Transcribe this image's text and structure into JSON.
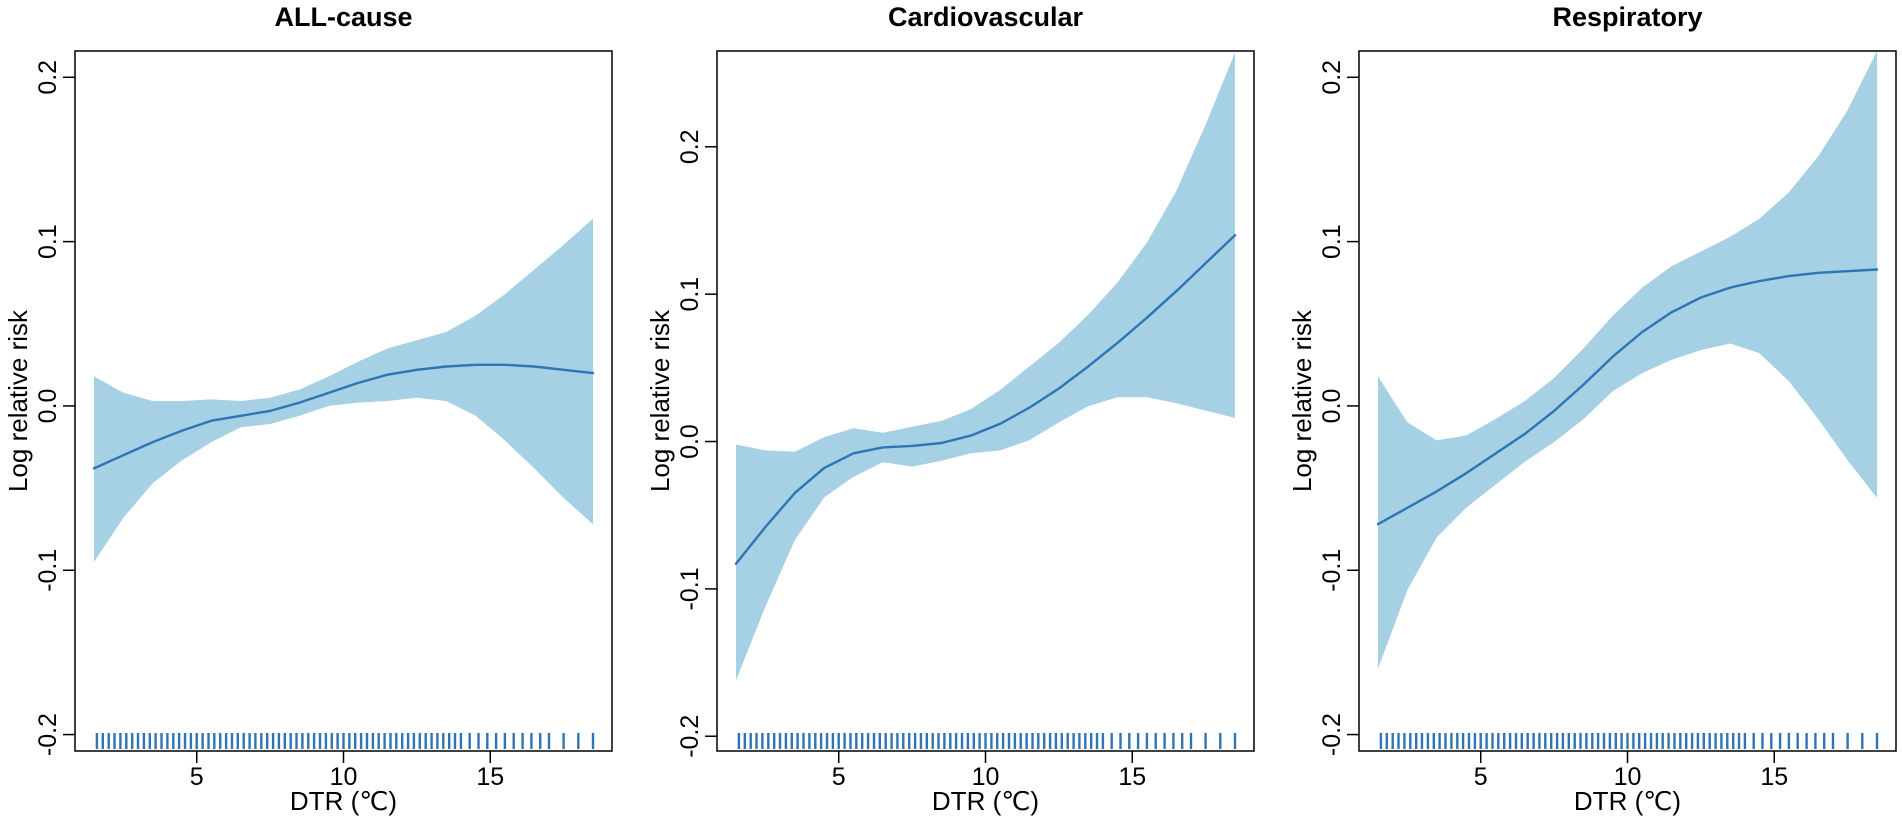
{
  "figure": {
    "background": "#ffffff"
  },
  "style": {
    "band_color": "#a6d0e4",
    "line_color": "#2f74b5",
    "rug_color": "#2f74b5",
    "axis_color": "#000000"
  },
  "chart_data": [
    {
      "type": "line",
      "title": "ALL-cause",
      "xlabel": "DTR (℃)",
      "ylabel": "Log relative risk",
      "xlim": [
        1.5,
        18.5
      ],
      "ylim": [
        -0.21,
        0.216
      ],
      "xticks": [
        5,
        10,
        15
      ],
      "xtick_labels": [
        "5",
        "10",
        "15"
      ],
      "yticks": [
        -0.2,
        -0.1,
        0.0,
        0.1,
        0.2
      ],
      "ytick_labels": [
        "-0.2",
        "-0.1",
        "0.0",
        "0.1",
        "0.2"
      ],
      "x": [
        1.5,
        2.5,
        3.5,
        4.5,
        5.5,
        6.5,
        7.5,
        8.5,
        9.5,
        10.5,
        11.5,
        12.5,
        13.5,
        14.5,
        15.5,
        16.5,
        17.5,
        18.5
      ],
      "series": [
        {
          "name": "Estimate",
          "values": [
            -0.038,
            -0.03,
            -0.022,
            -0.015,
            -0.009,
            -0.006,
            -0.003,
            0.002,
            0.008,
            0.014,
            0.019,
            0.022,
            0.024,
            0.025,
            0.025,
            0.024,
            0.022,
            0.02
          ]
        },
        {
          "name": "Upper 95% CI",
          "values": [
            0.018,
            0.008,
            0.003,
            0.003,
            0.004,
            0.003,
            0.005,
            0.01,
            0.018,
            0.027,
            0.035,
            0.04,
            0.045,
            0.055,
            0.068,
            0.083,
            0.098,
            0.114
          ]
        },
        {
          "name": "Lower 95% CI",
          "values": [
            -0.095,
            -0.068,
            -0.047,
            -0.033,
            -0.022,
            -0.013,
            -0.011,
            -0.006,
            0.0,
            0.002,
            0.003,
            0.005,
            0.003,
            -0.006,
            -0.021,
            -0.038,
            -0.056,
            -0.072
          ]
        }
      ],
      "rug": [
        1.6,
        1.8,
        2.0,
        2.2,
        2.4,
        2.6,
        2.8,
        3.0,
        3.2,
        3.4,
        3.6,
        3.8,
        4.0,
        4.2,
        4.4,
        4.6,
        4.8,
        5.0,
        5.2,
        5.4,
        5.6,
        5.8,
        6.0,
        6.2,
        6.4,
        6.6,
        6.8,
        7.0,
        7.2,
        7.4,
        7.6,
        7.8,
        8.0,
        8.2,
        8.4,
        8.6,
        8.8,
        9.0,
        9.2,
        9.4,
        9.6,
        9.8,
        10.0,
        10.2,
        10.4,
        10.6,
        10.8,
        11.0,
        11.2,
        11.4,
        11.6,
        11.8,
        12.0,
        12.2,
        12.4,
        12.6,
        12.8,
        13.0,
        13.2,
        13.4,
        13.6,
        13.8,
        14.0,
        14.3,
        14.6,
        14.9,
        15.2,
        15.5,
        15.8,
        16.1,
        16.4,
        16.7,
        17.0,
        17.5,
        18.0,
        18.5
      ]
    },
    {
      "type": "line",
      "title": "Cardiovascular",
      "xlabel": "DTR (℃)",
      "ylabel": "Log relative risk",
      "xlim": [
        1.5,
        18.5
      ],
      "ylim": [
        -0.21,
        0.265
      ],
      "xticks": [
        5,
        10,
        15
      ],
      "xtick_labels": [
        "5",
        "10",
        "15"
      ],
      "yticks": [
        -0.2,
        -0.1,
        0.0,
        0.1,
        0.2
      ],
      "ytick_labels": [
        "-0.2",
        "-0.1",
        "0.0",
        "0.1",
        "0.2"
      ],
      "x": [
        1.5,
        2.5,
        3.5,
        4.5,
        5.5,
        6.5,
        7.5,
        8.5,
        9.5,
        10.5,
        11.5,
        12.5,
        13.5,
        14.5,
        15.5,
        16.5,
        17.5,
        18.5
      ],
      "series": [
        {
          "name": "Estimate",
          "values": [
            -0.083,
            -0.058,
            -0.035,
            -0.018,
            -0.008,
            -0.004,
            -0.003,
            -0.001,
            0.004,
            0.012,
            0.023,
            0.036,
            0.051,
            0.067,
            0.084,
            0.102,
            0.121,
            0.14
          ]
        },
        {
          "name": "Upper 95% CI",
          "values": [
            -0.002,
            -0.006,
            -0.007,
            0.003,
            0.009,
            0.006,
            0.01,
            0.014,
            0.022,
            0.035,
            0.051,
            0.067,
            0.086,
            0.108,
            0.135,
            0.17,
            0.215,
            0.264
          ]
        },
        {
          "name": "Lower 95% CI",
          "values": [
            -0.162,
            -0.112,
            -0.067,
            -0.038,
            -0.024,
            -0.014,
            -0.017,
            -0.013,
            -0.008,
            -0.006,
            0.001,
            0.013,
            0.024,
            0.03,
            0.03,
            0.026,
            0.021,
            0.016
          ]
        }
      ],
      "rug": [
        1.6,
        1.8,
        2.0,
        2.2,
        2.4,
        2.6,
        2.8,
        3.0,
        3.2,
        3.4,
        3.6,
        3.8,
        4.0,
        4.2,
        4.4,
        4.6,
        4.8,
        5.0,
        5.2,
        5.4,
        5.6,
        5.8,
        6.0,
        6.2,
        6.4,
        6.6,
        6.8,
        7.0,
        7.2,
        7.4,
        7.6,
        7.8,
        8.0,
        8.2,
        8.4,
        8.6,
        8.8,
        9.0,
        9.2,
        9.4,
        9.6,
        9.8,
        10.0,
        10.2,
        10.4,
        10.6,
        10.8,
        11.0,
        11.2,
        11.4,
        11.6,
        11.8,
        12.0,
        12.2,
        12.4,
        12.6,
        12.8,
        13.0,
        13.2,
        13.4,
        13.6,
        13.8,
        14.0,
        14.3,
        14.6,
        14.9,
        15.2,
        15.5,
        15.8,
        16.1,
        16.4,
        16.7,
        17.0,
        17.5,
        18.0,
        18.5
      ]
    },
    {
      "type": "line",
      "title": "Respiratory",
      "xlabel": "DTR (℃)",
      "ylabel": "Log relative risk",
      "xlim": [
        1.5,
        18.5
      ],
      "ylim": [
        -0.21,
        0.216
      ],
      "xticks": [
        5,
        10,
        15
      ],
      "xtick_labels": [
        "5",
        "10",
        "15"
      ],
      "yticks": [
        -0.2,
        -0.1,
        0.0,
        0.1,
        0.2
      ],
      "ytick_labels": [
        "-0.2",
        "-0.1",
        "0.0",
        "0.1",
        "0.2"
      ],
      "x": [
        1.5,
        2.5,
        3.5,
        4.5,
        5.5,
        6.5,
        7.5,
        8.5,
        9.5,
        10.5,
        11.5,
        12.5,
        13.5,
        14.5,
        15.5,
        16.5,
        17.5,
        18.5
      ],
      "series": [
        {
          "name": "Estimate",
          "values": [
            -0.072,
            -0.062,
            -0.052,
            -0.041,
            -0.029,
            -0.017,
            -0.003,
            0.013,
            0.03,
            0.045,
            0.057,
            0.066,
            0.072,
            0.076,
            0.079,
            0.081,
            0.082,
            0.083
          ]
        },
        {
          "name": "Upper 95% CI",
          "values": [
            0.018,
            -0.01,
            -0.021,
            -0.018,
            -0.008,
            0.003,
            0.017,
            0.035,
            0.055,
            0.072,
            0.085,
            0.094,
            0.103,
            0.114,
            0.13,
            0.152,
            0.18,
            0.216
          ]
        },
        {
          "name": "Lower 95% CI",
          "values": [
            -0.16,
            -0.112,
            -0.08,
            -0.062,
            -0.048,
            -0.034,
            -0.022,
            -0.008,
            0.009,
            0.02,
            0.028,
            0.034,
            0.038,
            0.032,
            0.015,
            -0.008,
            -0.033,
            -0.056
          ]
        }
      ],
      "rug": [
        1.6,
        1.8,
        2.0,
        2.2,
        2.4,
        2.6,
        2.8,
        3.0,
        3.2,
        3.4,
        3.6,
        3.8,
        4.0,
        4.2,
        4.4,
        4.6,
        4.8,
        5.0,
        5.2,
        5.4,
        5.6,
        5.8,
        6.0,
        6.2,
        6.4,
        6.6,
        6.8,
        7.0,
        7.2,
        7.4,
        7.6,
        7.8,
        8.0,
        8.2,
        8.4,
        8.6,
        8.8,
        9.0,
        9.2,
        9.4,
        9.6,
        9.8,
        10.0,
        10.2,
        10.4,
        10.6,
        10.8,
        11.0,
        11.2,
        11.4,
        11.6,
        11.8,
        12.0,
        12.2,
        12.4,
        12.6,
        12.8,
        13.0,
        13.2,
        13.4,
        13.6,
        13.8,
        14.0,
        14.3,
        14.6,
        14.9,
        15.2,
        15.5,
        15.8,
        16.1,
        16.4,
        16.7,
        17.0,
        17.5,
        18.0,
        18.5
      ]
    }
  ]
}
